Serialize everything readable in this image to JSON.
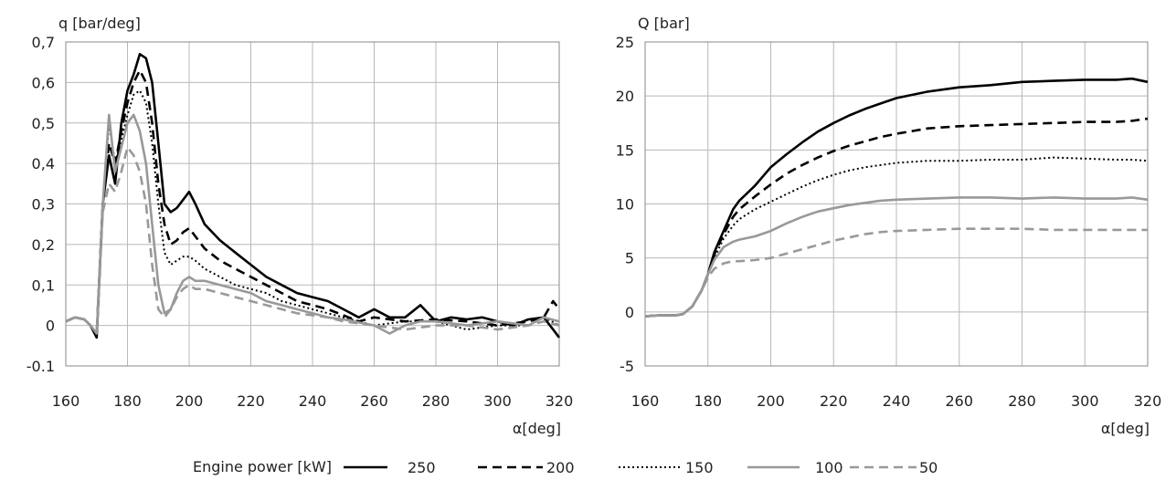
{
  "colors": {
    "black": "#000000",
    "gray": "#999999",
    "grid": "#b8b8b8"
  },
  "legend": {
    "title": "Engine power [kW]",
    "entries": [
      {
        "label": "250",
        "color": "#000000",
        "dash": "solid"
      },
      {
        "label": "200",
        "color": "#000000",
        "dash": "dashed"
      },
      {
        "label": "150",
        "color": "#000000",
        "dash": "dotted"
      },
      {
        "label": "100",
        "color": "#999999",
        "dash": "solid"
      },
      {
        "label": "50",
        "color": "#999999",
        "dash": "dashed"
      }
    ]
  },
  "chart_data": [
    {
      "type": "line",
      "ylabel": "q [bar/deg]",
      "xlabel": "α[deg]",
      "xlim": [
        160,
        320
      ],
      "ylim": [
        -0.1,
        0.7
      ],
      "xticks": [
        "160",
        "180",
        "200",
        "220",
        "240",
        "260",
        "280",
        "300",
        "320"
      ],
      "yticks": [
        "-0.1",
        "0",
        "0,1",
        "0,2",
        "0,3",
        "0,4",
        "0,5",
        "0,6",
        "0,7"
      ],
      "grid": true,
      "series": [
        {
          "name": "250",
          "color": "#000000",
          "dash": "solid",
          "x": [
            160,
            163,
            166,
            168,
            170,
            172,
            174,
            176,
            178,
            180,
            182,
            184,
            186,
            188,
            190,
            192,
            194,
            196,
            198,
            200,
            202,
            205,
            210,
            215,
            220,
            225,
            230,
            235,
            240,
            245,
            250,
            255,
            260,
            265,
            270,
            275,
            280,
            285,
            290,
            295,
            300,
            305,
            310,
            315,
            318,
            320
          ],
          "y": [
            0.01,
            0.02,
            0.015,
            0.0,
            -0.03,
            0.3,
            0.42,
            0.35,
            0.5,
            0.58,
            0.62,
            0.67,
            0.66,
            0.6,
            0.45,
            0.3,
            0.28,
            0.29,
            0.31,
            0.33,
            0.3,
            0.25,
            0.21,
            0.18,
            0.15,
            0.12,
            0.1,
            0.08,
            0.07,
            0.06,
            0.04,
            0.02,
            0.04,
            0.02,
            0.02,
            0.05,
            0.01,
            0.02,
            0.015,
            0.02,
            0.01,
            0.0,
            0.015,
            0.02,
            -0.01,
            -0.03
          ]
        },
        {
          "name": "200",
          "color": "#000000",
          "dash": "dashed",
          "x": [
            160,
            163,
            166,
            168,
            170,
            172,
            174,
            176,
            178,
            180,
            182,
            184,
            186,
            188,
            190,
            192,
            194,
            196,
            198,
            200,
            202,
            205,
            210,
            215,
            220,
            225,
            230,
            235,
            240,
            245,
            250,
            255,
            260,
            270,
            280,
            290,
            300,
            310,
            315,
            318,
            320
          ],
          "y": [
            0.01,
            0.02,
            0.015,
            0.0,
            -0.02,
            0.3,
            0.45,
            0.4,
            0.48,
            0.55,
            0.6,
            0.63,
            0.6,
            0.5,
            0.35,
            0.25,
            0.2,
            0.21,
            0.23,
            0.24,
            0.22,
            0.19,
            0.16,
            0.14,
            0.12,
            0.1,
            0.08,
            0.06,
            0.05,
            0.04,
            0.025,
            0.01,
            0.02,
            0.01,
            0.015,
            0.01,
            0.0,
            0.01,
            0.02,
            0.06,
            0.04
          ]
        },
        {
          "name": "150",
          "color": "#000000",
          "dash": "dotted",
          "x": [
            160,
            163,
            166,
            168,
            170,
            172,
            174,
            176,
            178,
            180,
            182,
            184,
            186,
            188,
            190,
            192,
            194,
            196,
            198,
            200,
            202,
            205,
            210,
            215,
            220,
            225,
            230,
            235,
            240,
            245,
            250,
            260,
            270,
            280,
            290,
            300,
            310,
            315,
            320
          ],
          "y": [
            0.01,
            0.02,
            0.015,
            0.0,
            -0.02,
            0.3,
            0.5,
            0.4,
            0.46,
            0.52,
            0.57,
            0.58,
            0.55,
            0.45,
            0.3,
            0.18,
            0.15,
            0.16,
            0.17,
            0.17,
            0.16,
            0.14,
            0.12,
            0.1,
            0.09,
            0.08,
            0.06,
            0.05,
            0.04,
            0.03,
            0.02,
            0.0,
            0.01,
            0.01,
            -0.01,
            0.0,
            0.0,
            0.02,
            0.0
          ]
        },
        {
          "name": "100",
          "color": "#999999",
          "dash": "solid",
          "x": [
            160,
            163,
            166,
            168,
            170,
            172,
            174,
            176,
            178,
            180,
            182,
            184,
            186,
            188,
            190,
            192,
            194,
            196,
            198,
            200,
            202,
            205,
            210,
            215,
            220,
            225,
            230,
            235,
            240,
            245,
            250,
            260,
            265,
            270,
            275,
            280,
            290,
            300,
            310,
            315,
            320
          ],
          "y": [
            0.01,
            0.02,
            0.015,
            0.0,
            -0.02,
            0.3,
            0.52,
            0.38,
            0.44,
            0.5,
            0.52,
            0.48,
            0.4,
            0.25,
            0.1,
            0.03,
            0.04,
            0.08,
            0.11,
            0.12,
            0.11,
            0.11,
            0.1,
            0.09,
            0.08,
            0.06,
            0.05,
            0.04,
            0.03,
            0.02,
            0.015,
            0.0,
            -0.02,
            0.0,
            0.01,
            0.01,
            0.0,
            0.01,
            0.0,
            0.02,
            0.01
          ]
        },
        {
          "name": "50",
          "color": "#999999",
          "dash": "dashed",
          "x": [
            160,
            163,
            166,
            168,
            170,
            172,
            174,
            176,
            178,
            180,
            182,
            184,
            186,
            188,
            190,
            192,
            194,
            196,
            198,
            200,
            202,
            205,
            210,
            215,
            220,
            225,
            230,
            235,
            240,
            245,
            250,
            260,
            270,
            280,
            290,
            300,
            310,
            315,
            320
          ],
          "y": [
            0.01,
            0.02,
            0.015,
            0.0,
            -0.02,
            0.28,
            0.35,
            0.33,
            0.38,
            0.44,
            0.42,
            0.38,
            0.3,
            0.15,
            0.04,
            0.02,
            0.04,
            0.07,
            0.09,
            0.1,
            0.09,
            0.09,
            0.08,
            0.07,
            0.06,
            0.05,
            0.04,
            0.03,
            0.025,
            0.02,
            0.01,
            0.0,
            -0.01,
            0.0,
            0.0,
            -0.01,
            0.0,
            0.01,
            0.0
          ]
        }
      ]
    },
    {
      "type": "line",
      "ylabel": "Q [bar]",
      "xlabel": "α[deg]",
      "xlim": [
        160,
        320
      ],
      "ylim": [
        -5,
        25
      ],
      "xticks": [
        "160",
        "180",
        "200",
        "220",
        "240",
        "260",
        "280",
        "300",
        "320"
      ],
      "yticks": [
        "-5",
        "0",
        "5",
        "10",
        "15",
        "20",
        "25"
      ],
      "grid": true,
      "series": [
        {
          "name": "250",
          "color": "#000000",
          "dash": "solid",
          "x": [
            160,
            165,
            170,
            172,
            175,
            178,
            180,
            182,
            185,
            188,
            190,
            195,
            200,
            205,
            210,
            215,
            220,
            225,
            230,
            235,
            240,
            250,
            260,
            270,
            280,
            290,
            300,
            310,
            315,
            320
          ],
          "y": [
            -0.4,
            -0.3,
            -0.3,
            -0.2,
            0.5,
            2.0,
            3.5,
            5.5,
            7.5,
            9.5,
            10.3,
            11.7,
            13.4,
            14.6,
            15.7,
            16.7,
            17.5,
            18.2,
            18.8,
            19.3,
            19.8,
            20.4,
            20.8,
            21.0,
            21.3,
            21.4,
            21.5,
            21.5,
            21.6,
            21.3
          ]
        },
        {
          "name": "200",
          "color": "#000000",
          "dash": "dashed",
          "x": [
            160,
            165,
            170,
            172,
            175,
            178,
            180,
            182,
            185,
            188,
            190,
            195,
            200,
            205,
            210,
            215,
            220,
            225,
            230,
            235,
            240,
            250,
            260,
            270,
            280,
            290,
            300,
            310,
            315,
            320
          ],
          "y": [
            -0.4,
            -0.3,
            -0.3,
            -0.2,
            0.5,
            2.0,
            3.5,
            5.3,
            7.2,
            8.8,
            9.5,
            10.7,
            11.8,
            12.8,
            13.6,
            14.3,
            14.9,
            15.4,
            15.8,
            16.2,
            16.5,
            17.0,
            17.2,
            17.3,
            17.4,
            17.5,
            17.6,
            17.6,
            17.7,
            17.9
          ]
        },
        {
          "name": "150",
          "color": "#000000",
          "dash": "dotted",
          "x": [
            160,
            165,
            170,
            172,
            175,
            178,
            180,
            182,
            185,
            188,
            190,
            195,
            200,
            205,
            210,
            215,
            220,
            225,
            230,
            235,
            240,
            250,
            260,
            270,
            280,
            290,
            300,
            310,
            315,
            320
          ],
          "y": [
            -0.4,
            -0.3,
            -0.3,
            -0.2,
            0.5,
            2.0,
            3.5,
            5.0,
            6.8,
            8.0,
            8.6,
            9.5,
            10.2,
            10.9,
            11.6,
            12.2,
            12.7,
            13.1,
            13.4,
            13.6,
            13.8,
            14.0,
            14.0,
            14.1,
            14.1,
            14.3,
            14.2,
            14.1,
            14.1,
            14.0
          ]
        },
        {
          "name": "100",
          "color": "#999999",
          "dash": "solid",
          "x": [
            160,
            165,
            170,
            172,
            175,
            178,
            180,
            182,
            185,
            188,
            190,
            195,
            200,
            205,
            210,
            215,
            220,
            225,
            230,
            235,
            240,
            250,
            260,
            270,
            280,
            290,
            300,
            310,
            315,
            320
          ],
          "y": [
            -0.4,
            -0.3,
            -0.3,
            -0.2,
            0.5,
            2.0,
            3.5,
            4.8,
            6.0,
            6.5,
            6.7,
            7.0,
            7.5,
            8.2,
            8.8,
            9.3,
            9.6,
            9.9,
            10.1,
            10.3,
            10.4,
            10.5,
            10.6,
            10.6,
            10.5,
            10.6,
            10.5,
            10.5,
            10.6,
            10.4
          ]
        },
        {
          "name": "50",
          "color": "#999999",
          "dash": "dashed",
          "x": [
            160,
            165,
            170,
            172,
            175,
            178,
            180,
            182,
            185,
            188,
            190,
            195,
            200,
            205,
            210,
            215,
            220,
            225,
            230,
            235,
            240,
            250,
            260,
            270,
            280,
            290,
            300,
            310,
            315,
            320
          ],
          "y": [
            -0.4,
            -0.3,
            -0.3,
            -0.2,
            0.5,
            2.0,
            3.2,
            4.0,
            4.5,
            4.7,
            4.7,
            4.8,
            5.0,
            5.4,
            5.8,
            6.2,
            6.6,
            6.9,
            7.2,
            7.4,
            7.5,
            7.6,
            7.7,
            7.7,
            7.7,
            7.6,
            7.6,
            7.6,
            7.6,
            7.6
          ]
        }
      ]
    }
  ]
}
